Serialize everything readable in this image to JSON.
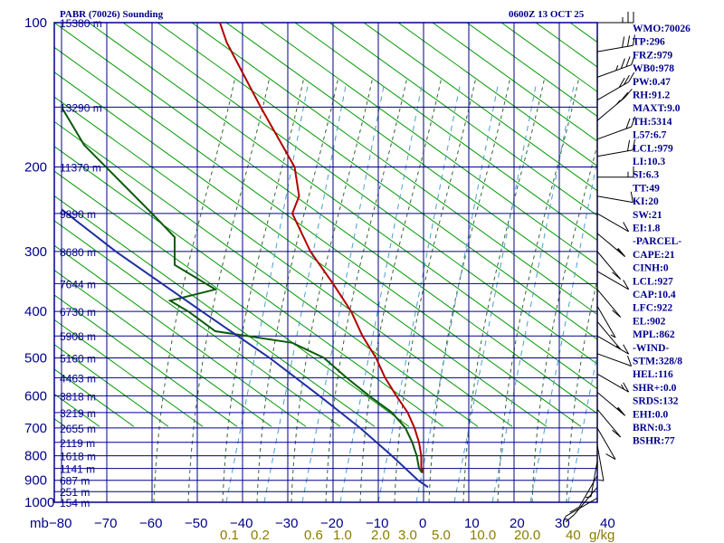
{
  "header": {
    "station_title": "PABR (70026) Sounding",
    "time_label": "0600Z 13 OCT 25"
  },
  "chart_data": {
    "type": "skew-t",
    "axes": {
      "pressure_ticks": [
        100,
        200,
        300,
        400,
        500,
        600,
        700,
        800,
        900,
        1000
      ],
      "pressure_unit": "mb",
      "temperature_ticks": [
        -80,
        -70,
        -60,
        -50,
        -40,
        -30,
        -20,
        -10,
        0,
        10,
        20,
        30,
        40
      ],
      "mixing_ratio_ticks": [
        "0.1",
        "0.2",
        "0.6",
        "1.0",
        "2.0",
        "3.0",
        "5.0",
        "10.0",
        "20.0",
        "40"
      ],
      "mixing_ratio_unit": "g/kg",
      "height_labels": [
        {
          "p": 100,
          "label": "15380 m"
        },
        {
          "p": 150,
          "label": "13290 m"
        },
        {
          "p": 200,
          "label": "11370 m"
        },
        {
          "p": 250,
          "label": "9890 m"
        },
        {
          "p": 300,
          "label": "8680 m"
        },
        {
          "p": 350,
          "label": "7644 m"
        },
        {
          "p": 400,
          "label": "6730 m"
        },
        {
          "p": 450,
          "label": "5908 m"
        },
        {
          "p": 500,
          "label": "5160 m"
        },
        {
          "p": 550,
          "label": "4463 m"
        },
        {
          "p": 600,
          "label": "3818 m"
        },
        {
          "p": 650,
          "label": "3219 m"
        },
        {
          "p": 700,
          "label": "2655 m"
        },
        {
          "p": 750,
          "label": "2119 m"
        },
        {
          "p": 800,
          "label": "1618 m"
        },
        {
          "p": 850,
          "label": "1141 m"
        },
        {
          "p": 900,
          "label": "687 m"
        },
        {
          "p": 950,
          "label": "251 m"
        },
        {
          "p": 1000,
          "label": "154 m"
        }
      ]
    },
    "series": [
      {
        "key": "temperature",
        "color": "#b30000",
        "points": [
          {
            "p": 100,
            "t": -45
          },
          {
            "p": 110,
            "t": -43.5
          },
          {
            "p": 150,
            "t": -36
          },
          {
            "p": 200,
            "t": -28.5
          },
          {
            "p": 230,
            "t": -27.5
          },
          {
            "p": 250,
            "t": -29
          },
          {
            "p": 300,
            "t": -25
          },
          {
            "p": 350,
            "t": -20
          },
          {
            "p": 400,
            "t": -16
          },
          {
            "p": 450,
            "t": -13.5
          },
          {
            "p": 500,
            "t": -10.5
          },
          {
            "p": 550,
            "t": -8.5
          },
          {
            "p": 600,
            "t": -6
          },
          {
            "p": 650,
            "t": -3.5
          },
          {
            "p": 700,
            "t": -2
          },
          {
            "p": 750,
            "t": -1
          },
          {
            "p": 800,
            "t": -0.5
          },
          {
            "p": 850,
            "t": -0.5
          },
          {
            "p": 868,
            "t": 0
          }
        ]
      },
      {
        "key": "dewpoint",
        "color": "#0b5a0b",
        "points": [
          {
            "p": 150,
            "t": -80
          },
          {
            "p": 180,
            "t": -75
          },
          {
            "p": 250,
            "t": -60
          },
          {
            "p": 280,
            "t": -55
          },
          {
            "p": 320,
            "t": -55
          },
          {
            "p": 360,
            "t": -46
          },
          {
            "p": 380,
            "t": -56
          },
          {
            "p": 400,
            "t": -52
          },
          {
            "p": 440,
            "t": -46
          },
          {
            "p": 465,
            "t": -29
          },
          {
            "p": 500,
            "t": -22
          },
          {
            "p": 550,
            "t": -17
          },
          {
            "p": 600,
            "t": -12
          },
          {
            "p": 650,
            "t": -7
          },
          {
            "p": 700,
            "t": -4
          },
          {
            "p": 750,
            "t": -2.5
          },
          {
            "p": 800,
            "t": -1.5
          },
          {
            "p": 850,
            "t": -1
          },
          {
            "p": 868,
            "t": -0.3
          }
        ]
      },
      {
        "key": "parcel",
        "color": "#1f2fa0",
        "points": [
          {
            "p": 245,
            "t": -80
          },
          {
            "p": 300,
            "t": -68
          },
          {
            "p": 400,
            "t": -49
          },
          {
            "p": 500,
            "t": -34
          },
          {
            "p": 600,
            "t": -23
          },
          {
            "p": 700,
            "t": -14
          },
          {
            "p": 800,
            "t": -7
          },
          {
            "p": 900,
            "t": -1.2
          },
          {
            "p": 930,
            "t": 1
          }
        ]
      }
    ],
    "wind_barbs": [
      {
        "p": 100,
        "dir": 270,
        "spd": 25
      },
      {
        "p": 115,
        "dir": 260,
        "spd": 30
      },
      {
        "p": 130,
        "dir": 250,
        "spd": 35
      },
      {
        "p": 145,
        "dir": 240,
        "spd": 30
      },
      {
        "p": 160,
        "dir": 230,
        "spd": 25
      },
      {
        "p": 175,
        "dir": 250,
        "spd": 20
      },
      {
        "p": 190,
        "dir": 260,
        "spd": 20
      },
      {
        "p": 210,
        "dir": 270,
        "spd": 15
      },
      {
        "p": 230,
        "dir": 280,
        "spd": 10
      },
      {
        "p": 250,
        "dir": 300,
        "spd": 10
      },
      {
        "p": 275,
        "dir": 310,
        "spd": 15
      },
      {
        "p": 300,
        "dir": 320,
        "spd": 10
      },
      {
        "p": 330,
        "dir": 300,
        "spd": 10
      },
      {
        "p": 360,
        "dir": 320,
        "spd": 10
      },
      {
        "p": 390,
        "dir": 330,
        "spd": 5
      },
      {
        "p": 420,
        "dir": 320,
        "spd": 5
      },
      {
        "p": 450,
        "dir": 300,
        "spd": 10
      },
      {
        "p": 490,
        "dir": 290,
        "spd": 10
      },
      {
        "p": 540,
        "dir": 300,
        "spd": 15
      },
      {
        "p": 590,
        "dir": 310,
        "spd": 15
      },
      {
        "p": 640,
        "dir": 320,
        "spd": 10
      },
      {
        "p": 700,
        "dir": 330,
        "spd": 10
      },
      {
        "p": 760,
        "dir": 350,
        "spd": 5
      },
      {
        "p": 820,
        "dir": 10,
        "spd": 5
      },
      {
        "p": 880,
        "dir": 30,
        "spd": 10
      },
      {
        "p": 930,
        "dir": 40,
        "spd": 10
      },
      {
        "p": 980,
        "dir": 60,
        "spd": 5
      }
    ]
  },
  "indices": [
    "WMO:70026",
    "TP:296",
    "FRZ:979",
    "WB0:978",
    "PW:0.47",
    "RH:91.2",
    "MAXT:9.0",
    "TH:5314",
    "L57:6.7",
    "LCL:979",
    "LI:10.3",
    "SI:6.3",
    "TT:49",
    "KI:20",
    "SW:21",
    "EI:1.8",
    "-PARCEL-",
    "CAPE:21",
    "CINH:0",
    "LCL:927",
    "CAP:10.4",
    "LFC:922",
    "EL:902",
    "MPL:862",
    "-WIND-",
    "STM:328/8",
    "HEL:116",
    "SHR+:0.0",
    "SRDS:132",
    "EHI:0.0",
    "BRN:0.3",
    "BSHR:77"
  ],
  "colors": {
    "grid": "#00008b",
    "dry_adiabat": "#009900",
    "moist_adiabat": "#336633",
    "mixing_ratio": "#4a9fd0",
    "temperature": "#b30000",
    "dewpoint": "#0b5a0b",
    "parcel": "#1f2fa0",
    "barb": "#000000",
    "text": "#00008b",
    "mix_label": "#8b7d00"
  }
}
